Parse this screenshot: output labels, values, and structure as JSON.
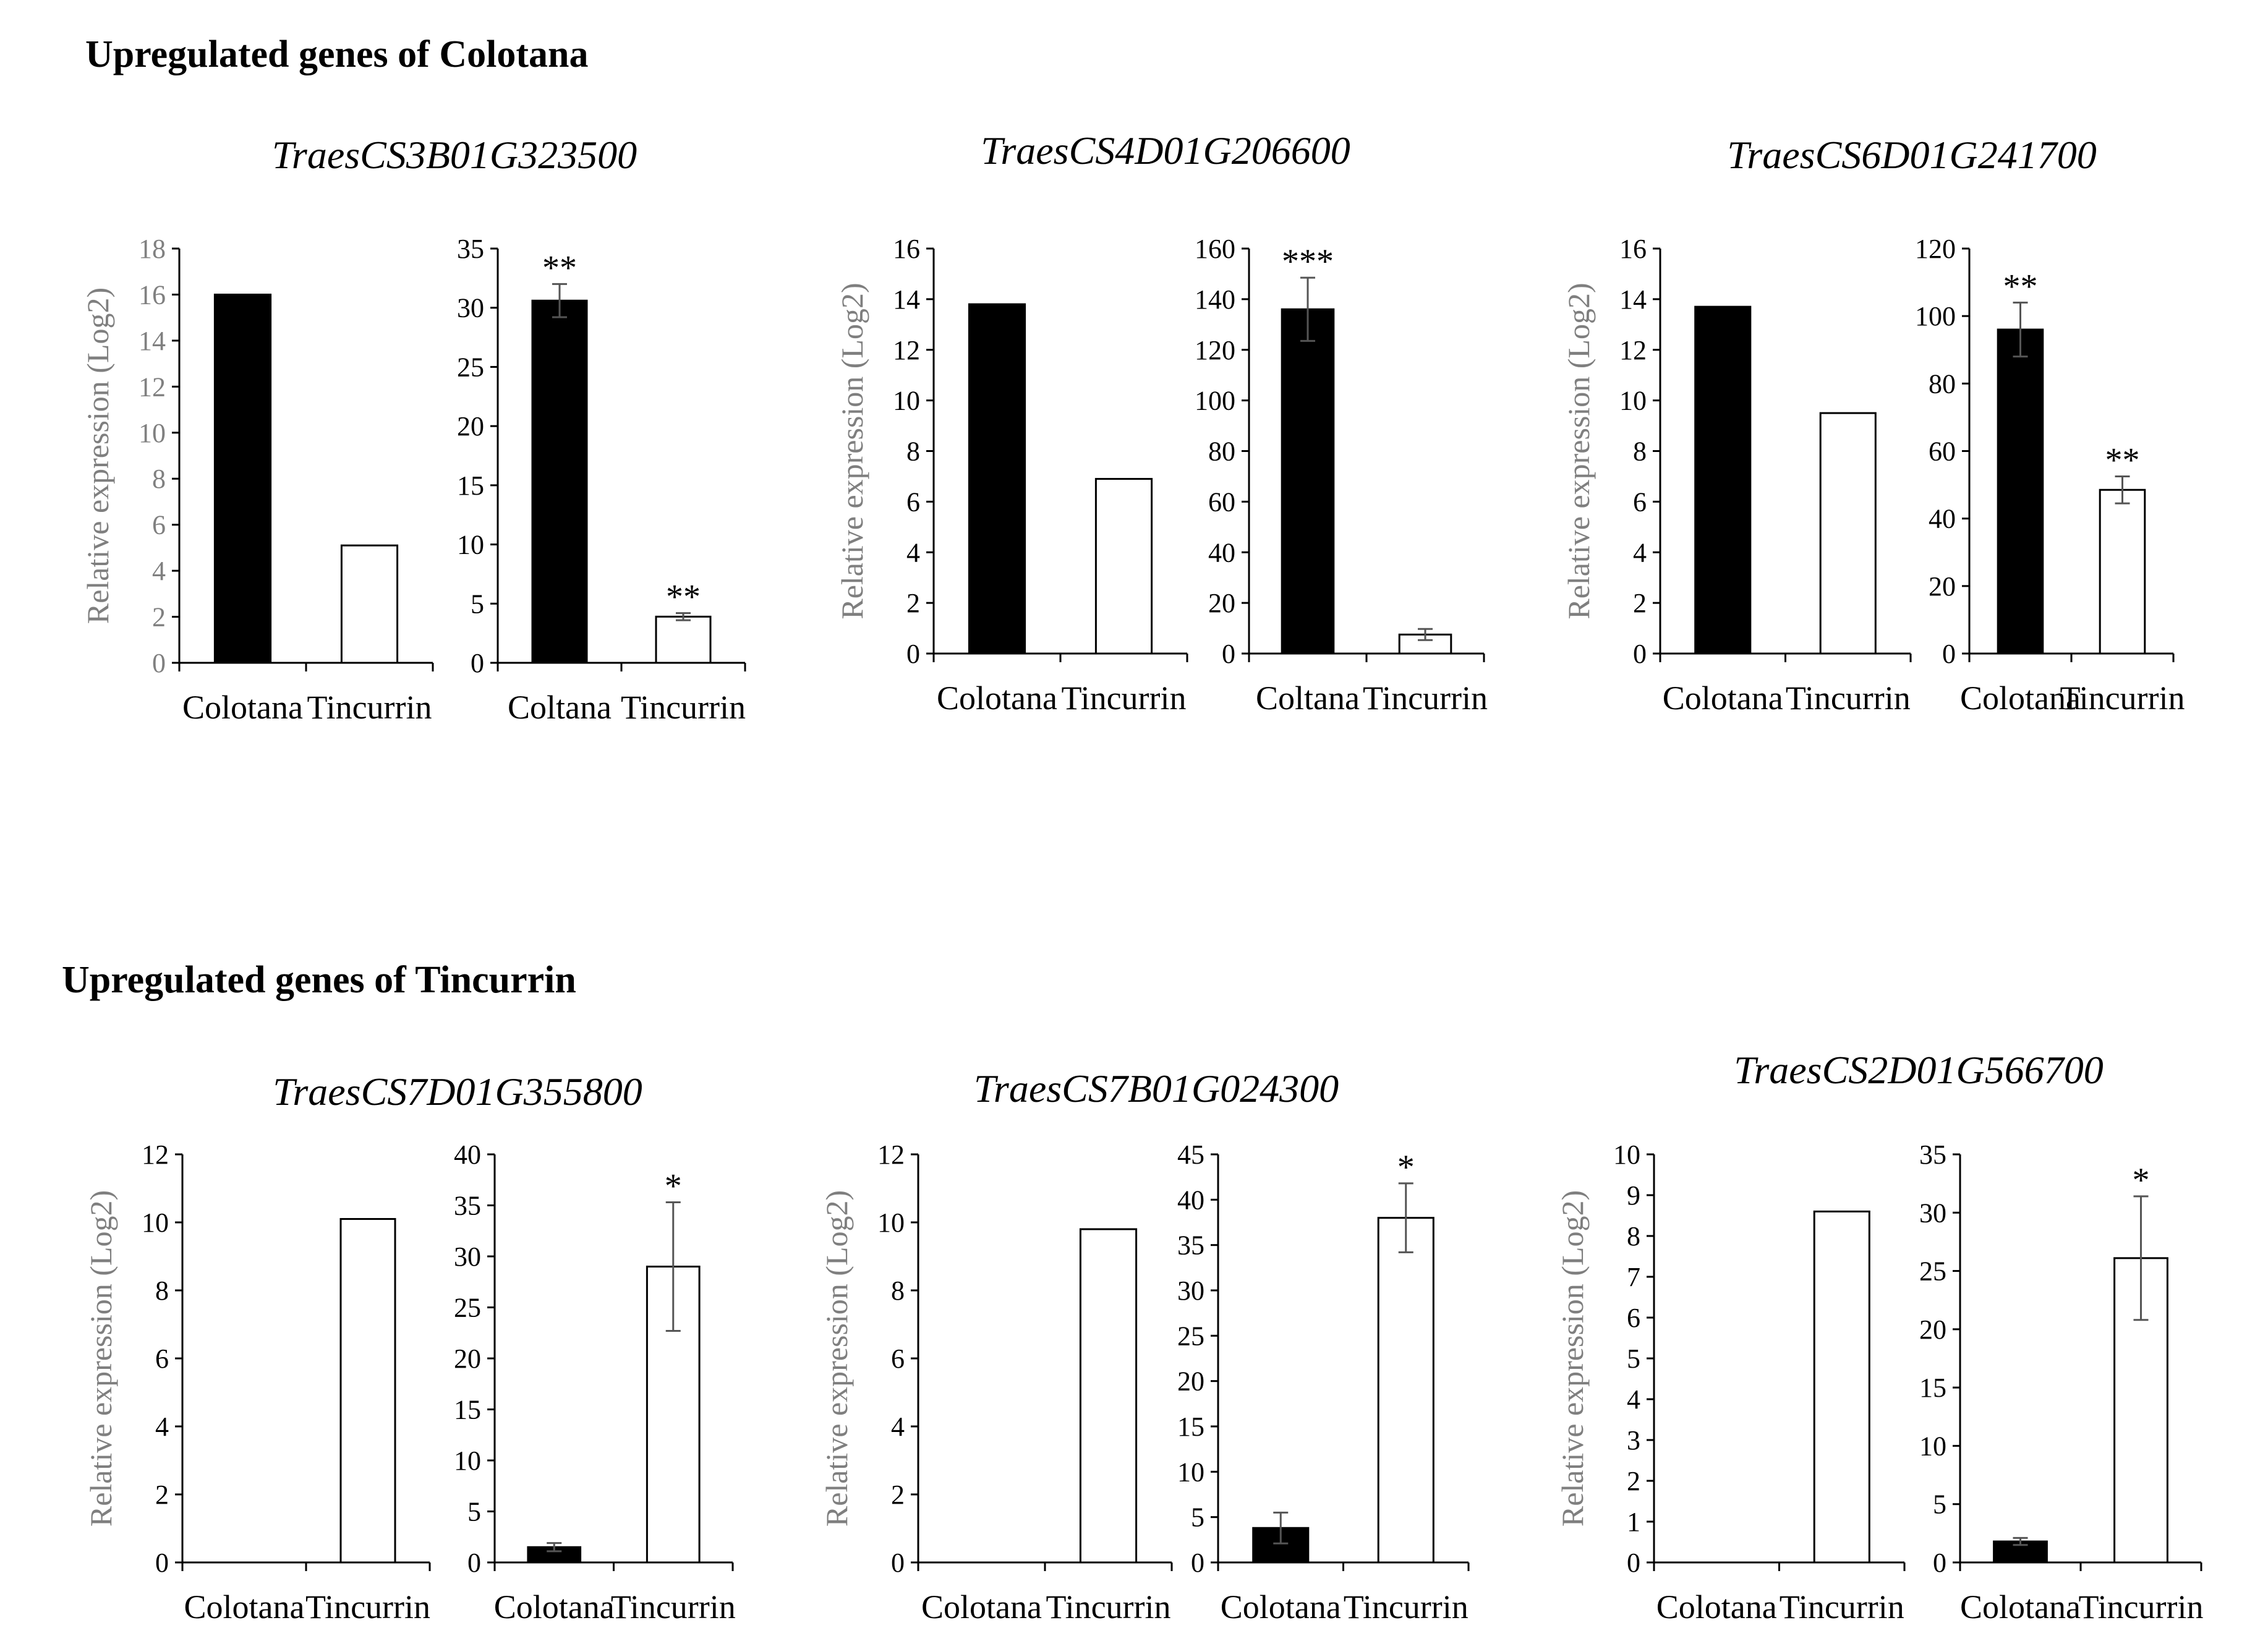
{
  "sections": [
    {
      "title": "Upregulated genes of Colotana"
    },
    {
      "title": "Upregulated genes of Tincurrin"
    }
  ],
  "colors": {
    "colotana_bar": "#000000",
    "tincurrin_bar": "#ffffff",
    "axis": "#000000",
    "ylabel": "#7f7f7f",
    "error_bar": "#555555"
  },
  "chart_data": [
    {
      "gene": "TraesCS3B01G323500",
      "section": 0,
      "panels": [
        {
          "type": "bar",
          "ylabel": "Relative expression (Log2)",
          "ylim": [
            0,
            18
          ],
          "ticks": [
            0,
            2,
            4,
            6,
            8,
            10,
            12,
            14,
            16,
            18
          ],
          "tick_color": "#808080",
          "categories": [
            "Colotana",
            "Tincurrin"
          ],
          "values": [
            16,
            5.1
          ]
        },
        {
          "type": "bar",
          "ylabel": "",
          "ylim": [
            0,
            35
          ],
          "ticks": [
            0,
            5,
            10,
            15,
            20,
            25,
            30,
            35
          ],
          "categories": [
            "Coltana",
            "Tincurrin"
          ],
          "values": [
            30.6,
            3.9
          ],
          "errors": [
            1.4,
            0.3
          ],
          "significance": [
            "**",
            "**"
          ]
        }
      ]
    },
    {
      "gene": "TraesCS4D01G206600",
      "section": 0,
      "panels": [
        {
          "type": "bar",
          "ylabel": "Relative expression (Log2)",
          "ylim": [
            0,
            16
          ],
          "ticks": [
            0,
            2,
            4,
            6,
            8,
            10,
            12,
            14,
            16
          ],
          "categories": [
            "Colotana",
            "Tincurrin"
          ],
          "values": [
            13.8,
            6.9
          ]
        },
        {
          "type": "bar",
          "ylabel": "",
          "ylim": [
            0,
            160
          ],
          "ticks": [
            0,
            20,
            40,
            60,
            80,
            100,
            120,
            140,
            160
          ],
          "categories": [
            "Coltana",
            "Tincurrin"
          ],
          "values": [
            136,
            7.5
          ],
          "errors": [
            12.5,
            2.2
          ],
          "significance": [
            "***",
            ""
          ]
        }
      ]
    },
    {
      "gene": "TraesCS6D01G241700",
      "section": 0,
      "panels": [
        {
          "type": "bar",
          "ylabel": "Relative expression (Log2)",
          "ylim": [
            0,
            16
          ],
          "ticks": [
            0,
            2,
            4,
            6,
            8,
            10,
            12,
            14,
            16
          ],
          "categories": [
            "Colotana",
            "Tincurrin"
          ],
          "values": [
            13.7,
            9.5
          ]
        },
        {
          "type": "bar",
          "ylabel": "",
          "ylim": [
            0,
            120
          ],
          "ticks": [
            0,
            20,
            40,
            60,
            80,
            100,
            120
          ],
          "categories": [
            "Colotana",
            "Tincurrin"
          ],
          "values": [
            96,
            48.5
          ],
          "errors": [
            8,
            4
          ],
          "significance": [
            "**",
            "**"
          ]
        }
      ]
    },
    {
      "gene": "TraesCS7D01G355800",
      "section": 1,
      "panels": [
        {
          "type": "bar",
          "ylabel": "Relative expression (Log2)",
          "ylim": [
            0,
            12
          ],
          "ticks": [
            0,
            2,
            4,
            6,
            8,
            10,
            12
          ],
          "categories": [
            "Colotana",
            "Tincurrin"
          ],
          "values": [
            0,
            10.1
          ]
        },
        {
          "type": "bar",
          "ylabel": "",
          "ylim": [
            0,
            40
          ],
          "ticks": [
            0,
            5,
            10,
            15,
            20,
            25,
            30,
            35,
            40
          ],
          "categories": [
            "Colotana",
            "Tincurrin"
          ],
          "values": [
            1.5,
            29
          ],
          "errors": [
            0.4,
            6.3
          ],
          "significance": [
            "",
            "*"
          ]
        }
      ]
    },
    {
      "gene": "TraesCS7B01G024300",
      "section": 1,
      "panels": [
        {
          "type": "bar",
          "ylabel": "Relative expression (Log2)",
          "ylim": [
            0,
            12
          ],
          "ticks": [
            0,
            2,
            4,
            6,
            8,
            10,
            12
          ],
          "categories": [
            "Colotana",
            "Tincurrin"
          ],
          "values": [
            0,
            9.8
          ]
        },
        {
          "type": "bar",
          "ylabel": "",
          "ylim": [
            0,
            45
          ],
          "ticks": [
            0,
            5,
            10,
            15,
            20,
            25,
            30,
            35,
            40,
            45
          ],
          "categories": [
            "Colotana",
            "Tincurrin"
          ],
          "values": [
            3.8,
            38
          ],
          "errors": [
            1.7,
            3.8
          ],
          "significance": [
            "",
            "*"
          ]
        }
      ]
    },
    {
      "gene": "TraesCS2D01G566700",
      "section": 1,
      "panels": [
        {
          "type": "bar",
          "ylabel": "Relative expression (Log2)",
          "ylim": [
            0,
            10
          ],
          "ticks": [
            0,
            1,
            2,
            3,
            4,
            5,
            6,
            7,
            8,
            9,
            10
          ],
          "categories": [
            "Colotana",
            "Tincurrin"
          ],
          "values": [
            0,
            8.6
          ]
        },
        {
          "type": "bar",
          "ylabel": "",
          "ylim": [
            0,
            35
          ],
          "ticks": [
            0,
            5,
            10,
            15,
            20,
            25,
            30,
            35
          ],
          "categories": [
            "Colotana",
            "Tincurrin"
          ],
          "values": [
            1.8,
            26.1
          ],
          "errors": [
            0.3,
            5.3
          ],
          "significance": [
            "",
            "*"
          ]
        }
      ]
    }
  ]
}
